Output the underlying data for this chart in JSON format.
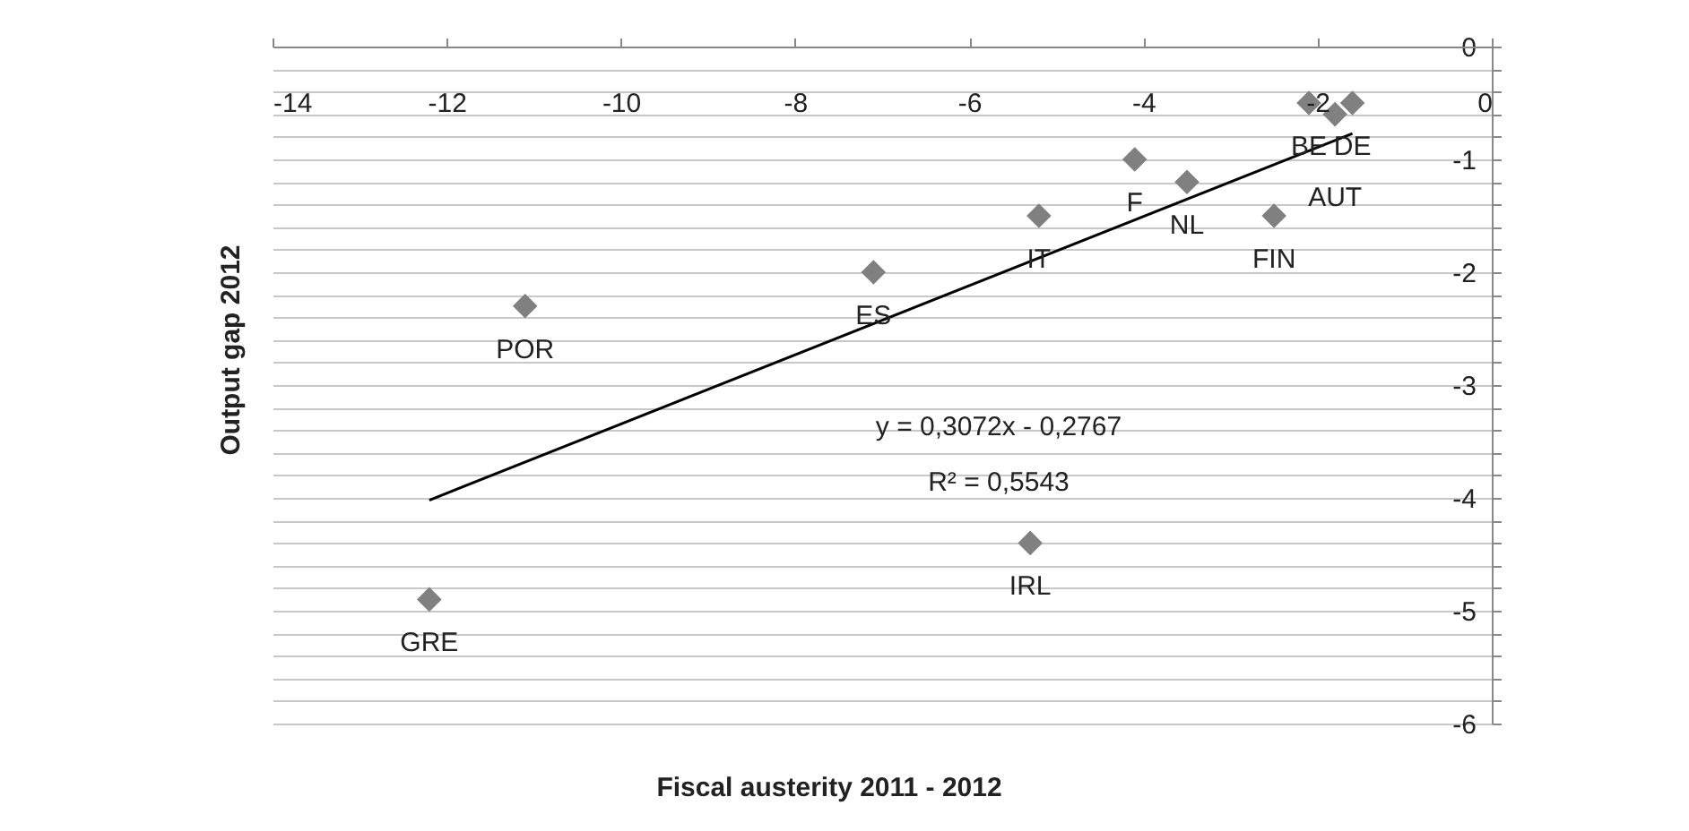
{
  "chart_data": {
    "type": "scatter",
    "xlabel": "Fiscal austerity 2011 - 2012",
    "ylabel": "Output gap 2012",
    "series": [
      {
        "marker": "diamond",
        "color": "#808080",
        "x": [
          -12.2,
          -11.1,
          -7.1,
          -5.2,
          -5.3,
          -4.1,
          -3.5,
          -2.5,
          -2.1,
          -1.8,
          -1.6
        ],
        "values": [
          -4.9,
          -2.3,
          -2.0,
          -1.5,
          -4.4,
          -1.0,
          -1.2,
          -1.5,
          -0.5,
          -0.6,
          -0.5
        ]
      },
      {
        "type": "line",
        "color": "#000000",
        "x": [
          -12.2,
          -1.6
        ],
        "values": [
          -4.02,
          -0.77
        ]
      }
    ],
    "xlim": [
      -14,
      0
    ],
    "xticks": [
      -14,
      -12,
      -10,
      -8,
      -6,
      -4,
      -2,
      0
    ],
    "ylim": [
      -6,
      0
    ],
    "yticks": [
      0,
      {
        "value": -0.2,
        "label": null
      },
      {
        "value": -0.4,
        "label": null
      },
      {
        "value": -0.6,
        "label": null
      },
      {
        "value": -0.8,
        "label": null
      },
      -1,
      {
        "value": -1.2,
        "label": null
      },
      {
        "value": -1.4,
        "label": null
      },
      {
        "value": -1.6,
        "label": null
      },
      {
        "value": -1.8,
        "label": null
      },
      -2,
      {
        "value": -2.2,
        "label": null
      },
      {
        "value": -2.4,
        "label": null
      },
      {
        "value": -2.6,
        "label": null
      },
      {
        "value": -2.8,
        "label": null
      },
      -3,
      {
        "value": -3.2,
        "label": null
      },
      {
        "value": -3.4,
        "label": null
      },
      {
        "value": -3.6,
        "label": null
      },
      {
        "value": -3.8,
        "label": null
      },
      -4,
      {
        "value": -4.2,
        "label": null
      },
      {
        "value": -4.4,
        "label": null
      },
      {
        "value": -4.6,
        "label": null
      },
      {
        "value": -4.8,
        "label": null
      },
      -5,
      {
        "value": -5.2,
        "label": null
      },
      {
        "value": -5.4,
        "label": null
      },
      {
        "value": -5.6,
        "label": null
      },
      {
        "value": -5.8,
        "label": null
      },
      -6
    ],
    "grid": "y",
    "annotations": [
      {
        "text": "GRE",
        "x": -12.2,
        "y": -4.9
      },
      {
        "text": "POR",
        "x": -11.1,
        "y": -2.3
      },
      {
        "text": "ES",
        "x": -7.1,
        "y": -2.0
      },
      {
        "text": "IT",
        "x": -5.2,
        "y": -1.5
      },
      {
        "text": "IRL",
        "x": -5.3,
        "y": -4.4
      },
      {
        "text": "F",
        "x": -4.1,
        "y": -1.0
      },
      {
        "text": "NL",
        "x": -3.5,
        "y": -1.2
      },
      {
        "text": "FIN",
        "x": -2.5,
        "y": -1.5
      },
      {
        "text": "BE",
        "x": -2.1,
        "y": -0.5
      },
      {
        "text": "AUT",
        "x": -1.8,
        "y": -0.6
      },
      {
        "text": "DE",
        "x": -1.6,
        "y": -0.5
      },
      "y = 0,3072x - 0,2767",
      "R² = 0,5543"
    ]
  }
}
